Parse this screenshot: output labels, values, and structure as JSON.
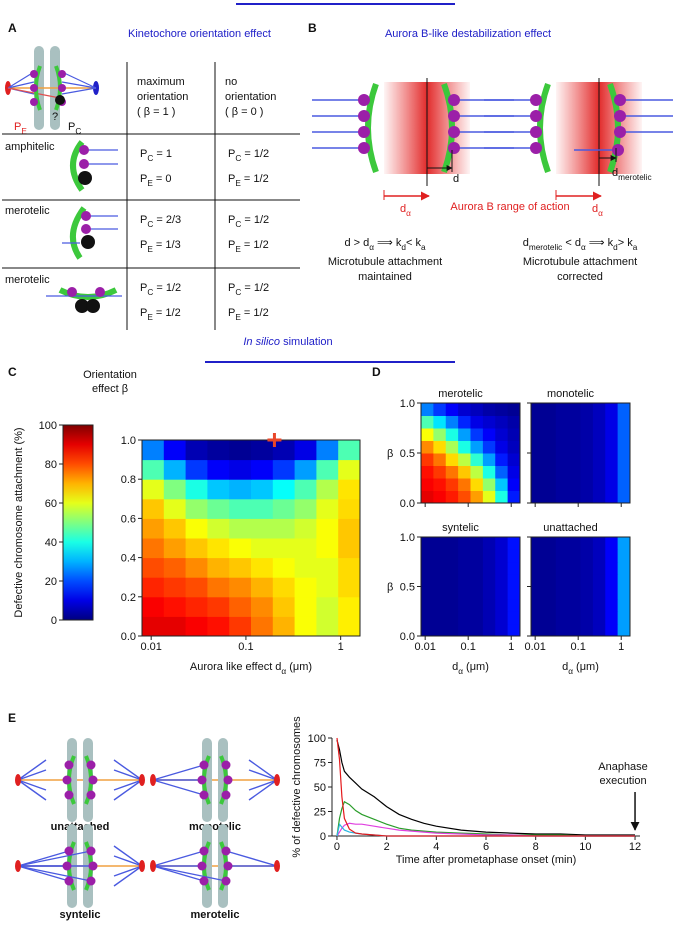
{
  "panel_a": {
    "label": "A",
    "title": "Kinetochore orientation effect",
    "pe": [
      "P",
      "E"
    ],
    "pc": [
      "P",
      "C"
    ],
    "question": "?",
    "columns": [
      [
        "maximum",
        "orientation",
        "( β = 1 )"
      ],
      [
        "no",
        "orientation",
        "( β = 0 )"
      ]
    ],
    "rows": [
      {
        "name": "amphitelic",
        "color": "#111111",
        "cells": [
          [
            [
              "P",
              "C",
              " = 1"
            ],
            [
              "P",
              "E",
              " = 0"
            ]
          ],
          [
            [
              "P",
              "C",
              " = 1/2"
            ],
            [
              "P",
              "E",
              " = 1/2"
            ]
          ]
        ]
      },
      {
        "name": "merotelic",
        "color": "#e02020",
        "cells": [
          [
            [
              "P",
              "C",
              " = 2/3"
            ],
            [
              "P",
              "E",
              " = 1/3"
            ]
          ],
          [
            [
              "P",
              "C",
              " = 1/2"
            ],
            [
              "P",
              "E",
              " = 1/2"
            ]
          ]
        ]
      },
      {
        "name": "merotelic",
        "color": "#e02020",
        "cells": [
          [
            [
              "P",
              "C",
              " = 1/2"
            ],
            [
              "P",
              "E",
              " = 1/2"
            ]
          ],
          [
            [
              "P",
              "C",
              " = 1/2"
            ],
            [
              "P",
              "E",
              " = 1/2"
            ]
          ]
        ]
      }
    ]
  },
  "panel_b": {
    "label": "B",
    "title": "Aurora B-like destabilization effect",
    "d": "d",
    "d_merotelic": [
      "d",
      "merotelic"
    ],
    "d_alpha_left": [
      "d",
      "α"
    ],
    "range": "Aurora B range of action",
    "d_alpha_right": [
      "d",
      "α"
    ],
    "left": {
      "equation": [
        "d > d",
        "α",
        " ⟹ k",
        "d",
        "< k",
        "a"
      ],
      "caption": [
        "Microtubule attachment",
        "maintained"
      ]
    },
    "right": {
      "equation": [
        "d",
        "merotelic",
        " < d",
        "α",
        " ⟹ k",
        "d",
        "> k",
        "a"
      ],
      "caption": [
        "Microtubule attachment",
        "corrected"
      ]
    }
  },
  "section_title": {
    "italic": "In silico",
    "rest": " simulation"
  },
  "panel_e": {
    "label": "E",
    "cartoons": [
      {
        "name": "unattached",
        "color": "#29a8e0"
      },
      {
        "name": "monotelic",
        "color": "#1e8a1e"
      },
      {
        "name": "syntelic",
        "color": "#e030e0"
      },
      {
        "name": "merotelic",
        "color": "#e02020"
      }
    ]
  },
  "chart_data": [
    {
      "type": "heatmap",
      "panel": "C",
      "colorbar_title": [
        "Orientation",
        "effect β"
      ],
      "colorbar_label": "Defective chromosome  attachment (%)",
      "clim": [
        0,
        100
      ],
      "colormap": "jet",
      "cticks": [
        0,
        20,
        40,
        60,
        80,
        100
      ],
      "xlabel": [
        "Aurora like effect d",
        "α",
        " (μm)"
      ],
      "xscale": "log",
      "xlim": [
        0.008,
        1.6
      ],
      "xticks": [
        0.01,
        0.1,
        1
      ],
      "ylim": [
        0,
        1
      ],
      "yticks": [
        {
          "value": 0,
          "label": "0.0"
        },
        {
          "value": 0.2,
          "label": "0.2"
        },
        {
          "value": 0.4,
          "label": "0.4"
        },
        {
          "value": 0.6,
          "label": "0.6"
        },
        {
          "value": 0.8,
          "label": "0.8"
        },
        {
          "value": 1,
          "label": "1.0"
        }
      ],
      "marker": {
        "x": 0.2,
        "y": 1.0,
        "color": "#e8462a"
      },
      "z": [
        [
          90,
          90,
          88,
          86,
          82,
          76,
          70,
          62,
          58,
          64
        ],
        [
          88,
          86,
          84,
          82,
          78,
          74,
          68,
          62,
          58,
          64
        ],
        [
          84,
          82,
          80,
          76,
          74,
          70,
          66,
          62,
          60,
          66
        ],
        [
          80,
          78,
          74,
          70,
          68,
          65,
          62,
          60,
          60,
          66
        ],
        [
          76,
          72,
          68,
          65,
          62,
          60,
          60,
          60,
          62,
          68
        ],
        [
          72,
          68,
          62,
          58,
          55,
          55,
          55,
          58,
          62,
          68
        ],
        [
          68,
          60,
          52,
          48,
          45,
          45,
          48,
          52,
          60,
          66
        ],
        [
          60,
          50,
          40,
          32,
          30,
          32,
          38,
          45,
          55,
          65
        ],
        [
          45,
          30,
          18,
          12,
          10,
          12,
          18,
          28,
          45,
          60
        ],
        [
          25,
          12,
          5,
          3,
          2,
          3,
          5,
          10,
          25,
          45
        ]
      ]
    },
    {
      "type": "heatmap",
      "panel": "D",
      "title": "merotelic",
      "ylabel": "β",
      "clim": [
        0,
        100
      ],
      "colormap": "jet",
      "xscale": "log",
      "xlim": [
        0.008,
        1.6
      ],
      "xticks": [
        0.01,
        0.1,
        1
      ],
      "xtick_labels": false,
      "ylim": [
        0,
        1
      ],
      "yticks": [
        {
          "value": 0,
          "label": "0.0"
        },
        {
          "value": 0.5,
          "label": "0.5"
        },
        {
          "value": 1,
          "label": "1.0"
        }
      ],
      "z": [
        [
          90,
          88,
          85,
          80,
          72,
          60,
          40,
          15
        ],
        [
          88,
          86,
          82,
          76,
          66,
          52,
          32,
          12
        ],
        [
          86,
          82,
          76,
          68,
          56,
          40,
          22,
          10
        ],
        [
          82,
          76,
          66,
          56,
          42,
          28,
          15,
          8
        ],
        [
          74,
          66,
          54,
          40,
          28,
          18,
          10,
          6
        ],
        [
          62,
          52,
          40,
          28,
          18,
          12,
          8,
          5
        ],
        [
          45,
          35,
          25,
          16,
          10,
          8,
          6,
          4
        ],
        [
          25,
          18,
          12,
          8,
          6,
          4,
          3,
          2
        ]
      ]
    },
    {
      "type": "heatmap",
      "title": "monotelic",
      "clim": [
        0,
        100
      ],
      "colormap": "jet",
      "xscale": "log",
      "xlim": [
        0.008,
        1.6
      ],
      "xticks": [
        0.01,
        0.1,
        1
      ],
      "xtick_labels": false,
      "ylim": [
        0,
        1
      ],
      "yticks": [
        0,
        0.5,
        1
      ],
      "ytick_labels": false,
      "z": [
        [
          2,
          2,
          3,
          3,
          4,
          6,
          10,
          22
        ],
        [
          2,
          2,
          3,
          3,
          4,
          6,
          10,
          22
        ],
        [
          2,
          2,
          3,
          3,
          4,
          6,
          10,
          22
        ],
        [
          2,
          2,
          3,
          3,
          4,
          6,
          10,
          22
        ],
        [
          2,
          2,
          3,
          3,
          4,
          6,
          10,
          22
        ],
        [
          2,
          2,
          3,
          3,
          4,
          6,
          10,
          22
        ],
        [
          2,
          2,
          3,
          3,
          4,
          6,
          10,
          22
        ],
        [
          2,
          2,
          3,
          3,
          4,
          6,
          10,
          22
        ]
      ]
    },
    {
      "type": "heatmap",
      "title": "syntelic",
      "ylabel": "β",
      "xlabel": [
        "d",
        "α",
        "  (μm)"
      ],
      "clim": [
        0,
        100
      ],
      "colormap": "jet",
      "xscale": "log",
      "xlim": [
        0.008,
        1.6
      ],
      "xticks": [
        0.01,
        0.1,
        1
      ],
      "ylim": [
        0,
        1
      ],
      "yticks": [
        {
          "value": 0,
          "label": "0.0"
        },
        {
          "value": 0.5,
          "label": "0.5"
        },
        {
          "value": 1,
          "label": "1.0"
        }
      ],
      "z": [
        [
          2,
          2,
          2,
          3,
          3,
          5,
          8,
          14
        ],
        [
          2,
          2,
          2,
          3,
          3,
          5,
          8,
          14
        ],
        [
          2,
          2,
          2,
          3,
          3,
          5,
          8,
          14
        ],
        [
          2,
          2,
          2,
          3,
          3,
          5,
          8,
          14
        ],
        [
          2,
          2,
          2,
          3,
          3,
          5,
          8,
          14
        ],
        [
          2,
          2,
          2,
          3,
          3,
          5,
          8,
          14
        ],
        [
          2,
          2,
          2,
          3,
          3,
          5,
          8,
          14
        ],
        [
          2,
          2,
          2,
          3,
          3,
          5,
          8,
          14
        ]
      ]
    },
    {
      "type": "heatmap",
      "title": "unattached",
      "xlabel": [
        "d",
        "α",
        "  (μm)"
      ],
      "clim": [
        0,
        100
      ],
      "colormap": "jet",
      "xscale": "log",
      "xlim": [
        0.008,
        1.6
      ],
      "xticks": [
        0.01,
        0.1,
        1
      ],
      "ylim": [
        0,
        1
      ],
      "yticks": [
        0,
        0.5,
        1
      ],
      "ytick_labels": false,
      "z": [
        [
          2,
          2,
          3,
          3,
          4,
          6,
          12,
          28
        ],
        [
          2,
          2,
          3,
          3,
          4,
          6,
          12,
          28
        ],
        [
          2,
          2,
          3,
          3,
          4,
          6,
          12,
          28
        ],
        [
          2,
          2,
          3,
          3,
          4,
          6,
          12,
          28
        ],
        [
          2,
          2,
          3,
          3,
          4,
          6,
          12,
          28
        ],
        [
          2,
          2,
          3,
          3,
          4,
          6,
          12,
          28
        ],
        [
          2,
          2,
          3,
          3,
          4,
          6,
          12,
          28
        ],
        [
          2,
          2,
          3,
          3,
          4,
          6,
          12,
          28
        ]
      ]
    },
    {
      "type": "line",
      "ylabel": "% of defective chromosomes",
      "xlabel": "Time after  prometaphase onset (min)",
      "xlim": [
        -0.2,
        12.2
      ],
      "xticks": [
        0,
        2,
        4,
        6,
        8,
        10,
        12
      ],
      "ylim": [
        0,
        100
      ],
      "yticks": [
        0,
        25,
        50,
        75,
        100
      ],
      "x": [
        0,
        0.1,
        0.2,
        0.3,
        0.5,
        0.75,
        1,
        1.5,
        2,
        2.5,
        3,
        3.5,
        4,
        5,
        6,
        7,
        8,
        9,
        10,
        11,
        12
      ],
      "series": [
        {
          "color": "#000000",
          "values": [
            98,
            88,
            75,
            66,
            60,
            54,
            48,
            40,
            30,
            22,
            17,
            13,
            10,
            6,
            4,
            3,
            2,
            2,
            1,
            1,
            1
          ]
        },
        {
          "color": "#2a9d2a",
          "values": [
            0,
            18,
            28,
            35,
            32,
            26,
            22,
            17,
            12,
            8,
            6,
            5,
            4,
            3,
            2,
            1,
            1,
            1,
            0,
            0,
            0
          ]
        },
        {
          "color": "#e040e0",
          "values": [
            0,
            4,
            8,
            11,
            13,
            12,
            12,
            10,
            8,
            6,
            5,
            4,
            3,
            2,
            1,
            1,
            0,
            0,
            0,
            0,
            0
          ]
        },
        {
          "color": "#29b6e0",
          "values": [
            0,
            12,
            9,
            6,
            4,
            3,
            2,
            1,
            0,
            0,
            0,
            0,
            0,
            0,
            0,
            0,
            0,
            0,
            0,
            0,
            0
          ]
        },
        {
          "color": "#e41a1c",
          "values": [
            100,
            78,
            40,
            18,
            7,
            3,
            2,
            1,
            0,
            0,
            0,
            0,
            0,
            0,
            0,
            0,
            0,
            0,
            0,
            0,
            0
          ]
        }
      ],
      "annotation": {
        "text": [
          "Anaphase",
          "execution"
        ],
        "x": 12
      }
    }
  ]
}
